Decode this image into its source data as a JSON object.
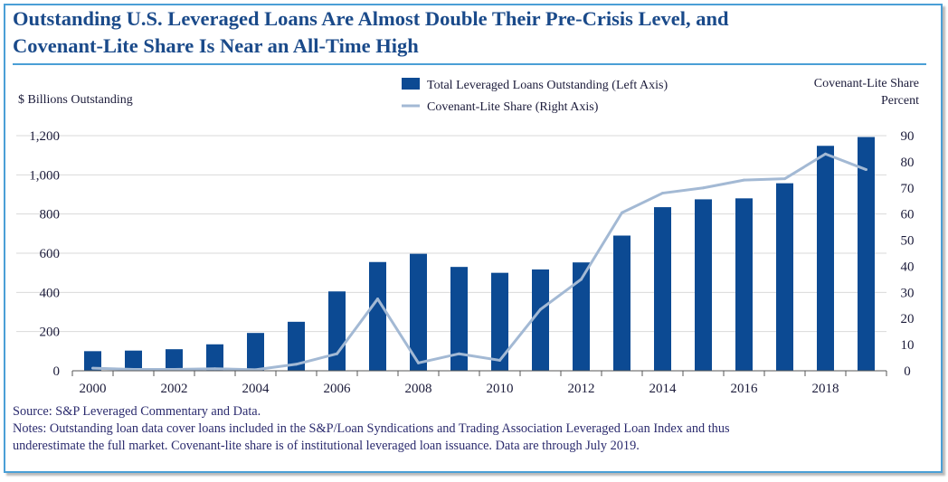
{
  "header": {
    "title_line1": "Outstanding U.S. Leveraged Loans Are Almost Double Their Pre-Crisis Level, and",
    "title_line2": "Covenant-Lite Share Is Near an All-Time High"
  },
  "colors": {
    "bar": "#0c4a93",
    "line": "#a3b9d4",
    "title": "#1a4a8a",
    "frame": "#4a9fd6",
    "grid": "#d9d9d9",
    "text": "#1b1b3a"
  },
  "chart_data": {
    "type": "bar",
    "title": "Outstanding U.S. Leveraged Loans Are Almost Double Their Pre-Crisis Level, and Covenant-Lite Share Is Near an All-Time High",
    "categories": [
      "2000",
      "2001",
      "2002",
      "2003",
      "2004",
      "2005",
      "2006",
      "2007",
      "2008",
      "2009",
      "2010",
      "2011",
      "2012",
      "2013",
      "2014",
      "2015",
      "2016",
      "2017",
      "2018",
      "2019"
    ],
    "x_tick_labels": [
      "2000",
      "2002",
      "2004",
      "2006",
      "2008",
      "2010",
      "2012",
      "2014",
      "2016",
      "2018"
    ],
    "series": [
      {
        "name": "Total Leveraged Loans Outstanding (Left Axis)",
        "kind": "bar",
        "axis": "left",
        "values": [
          100,
          103,
          110,
          135,
          193,
          250,
          405,
          555,
          597,
          530,
          500,
          517,
          553,
          690,
          835,
          875,
          880,
          957,
          1148,
          1193
        ]
      },
      {
        "name": "Covenant-Lite Share (Right Axis)",
        "kind": "line",
        "axis": "right",
        "values": [
          1,
          0.5,
          0.5,
          0.8,
          0.4,
          2.5,
          6.5,
          27.5,
          3,
          6.5,
          4,
          23.5,
          35,
          60.5,
          68,
          70,
          73,
          73.5,
          83,
          77
        ]
      }
    ],
    "ylabel_left": "$ Billions Outstanding",
    "ylim_left": [
      0,
      1200
    ],
    "yticks_left": [
      "0",
      "200",
      "400",
      "600",
      "800",
      "1,000",
      "1,200"
    ],
    "ylabel_right_line1": "Covenant-Lite Share",
    "ylabel_right_line2": "Percent",
    "ylim_right": [
      0,
      90
    ],
    "yticks_right": [
      "0",
      "10",
      "20",
      "30",
      "40",
      "50",
      "60",
      "70",
      "80",
      "90"
    ],
    "grid": true,
    "legend_position": "top-center"
  },
  "footer": {
    "source": "Source: S&P Leveraged Commentary and Data.",
    "notes_line1": "Notes: Outstanding  loan data cover loans included in the S&P/Loan Syndications and Trading Association Leveraged Loan Index and thus",
    "notes_line2": "underestimate the full market. Covenant-lite share is of institutional leveraged loan issuance. Data are through July 2019."
  }
}
